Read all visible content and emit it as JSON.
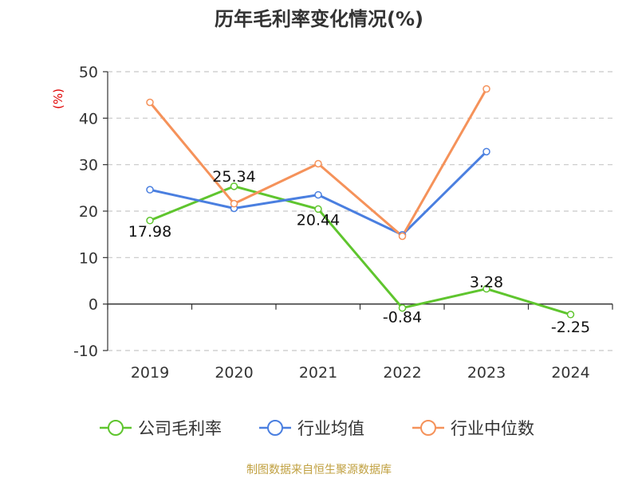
{
  "chart_data": {
    "type": "line",
    "title": "历年毛利率变化情况(%)",
    "ylabel": "(%)",
    "xlabel": "",
    "categories": [
      "2019",
      "2020",
      "2021",
      "2022",
      "2023",
      "2024"
    ],
    "ylim": [
      -10,
      50
    ],
    "yticks": [
      "50",
      "40",
      "30",
      "20",
      "10",
      "0",
      "-10"
    ],
    "grid": true,
    "legend_position": "bottom",
    "series": [
      {
        "name": "公司毛利率",
        "color": "#5fc52e",
        "values": [
          17.98,
          25.34,
          20.44,
          -0.84,
          3.28,
          -2.25
        ],
        "labels": [
          "17.98",
          "25.34",
          "20.44",
          "-0.84",
          "3.28",
          "-2.25"
        ]
      },
      {
        "name": "行业均值",
        "color": "#4a7fe0",
        "values": [
          24.6,
          20.6,
          23.5,
          14.9,
          32.8,
          null
        ]
      },
      {
        "name": "行业中位数",
        "color": "#f5925a",
        "values": [
          43.4,
          21.6,
          30.2,
          14.6,
          46.3,
          null
        ]
      }
    ],
    "source": "制图数据来自恒生聚源数据库"
  }
}
